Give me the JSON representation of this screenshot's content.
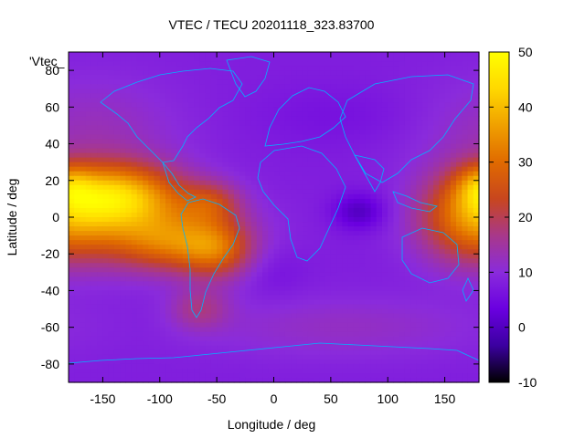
{
  "chart_data": {
    "type": "heatmap",
    "title": "VTEC / TECU 20201118_323.83700",
    "key_label": "'Vtec_",
    "xlabel": "Longitude / deg",
    "ylabel": "Latitude / deg",
    "xlim": [
      -180,
      180
    ],
    "ylim": [
      -90,
      90
    ],
    "xticks": [
      -150,
      -100,
      -50,
      0,
      50,
      100,
      150
    ],
    "yticks": [
      -80,
      -60,
      -40,
      -20,
      0,
      20,
      40,
      60,
      80
    ],
    "colorbar": {
      "min": -10,
      "max": 50,
      "ticks": [
        -10,
        0,
        10,
        20,
        30,
        40,
        50
      ],
      "palette": [
        "#000000",
        "#3b00a0",
        "#6a00e0",
        "#8a2bdc",
        "#a8388a",
        "#c8461e",
        "#e06a00",
        "#f0a000",
        "#ffd800",
        "#ffff00"
      ]
    },
    "background_value": 8,
    "features": [
      {
        "lon": -140,
        "lat": 12,
        "sx": 40,
        "sy": 12,
        "amp": 30
      },
      {
        "lon": -115,
        "lat": -8,
        "sx": 55,
        "sy": 14,
        "amp": 16
      },
      {
        "lon": -90,
        "lat": -15,
        "sx": 30,
        "sy": 10,
        "amp": 10
      },
      {
        "lon": -50,
        "lat": -18,
        "sx": 22,
        "sy": 11,
        "amp": 16
      },
      {
        "lon": -55,
        "lat": 8,
        "sx": 18,
        "sy": 8,
        "amp": 11
      },
      {
        "lon": 170,
        "lat": -2,
        "sx": 30,
        "sy": 16,
        "amp": 16
      },
      {
        "lon": 180,
        "lat": 18,
        "sx": 14,
        "sy": 8,
        "amp": 10
      },
      {
        "lon": -160,
        "lat": 45,
        "sx": 55,
        "sy": 22,
        "amp": 5
      },
      {
        "lon": 60,
        "lat": -60,
        "sx": 90,
        "sy": 12,
        "amp": 4
      },
      {
        "lon": 75,
        "lat": 3,
        "sx": 16,
        "sy": 7,
        "amp": -8
      },
      {
        "lon": 60,
        "lat": 55,
        "sx": 55,
        "sy": 12,
        "amp": -2
      },
      {
        "lon": 0,
        "lat": -30,
        "sx": 20,
        "sy": 10,
        "amp": -2
      },
      {
        "lon": -65,
        "lat": -50,
        "sx": 18,
        "sy": 8,
        "amp": 8
      }
    ]
  }
}
